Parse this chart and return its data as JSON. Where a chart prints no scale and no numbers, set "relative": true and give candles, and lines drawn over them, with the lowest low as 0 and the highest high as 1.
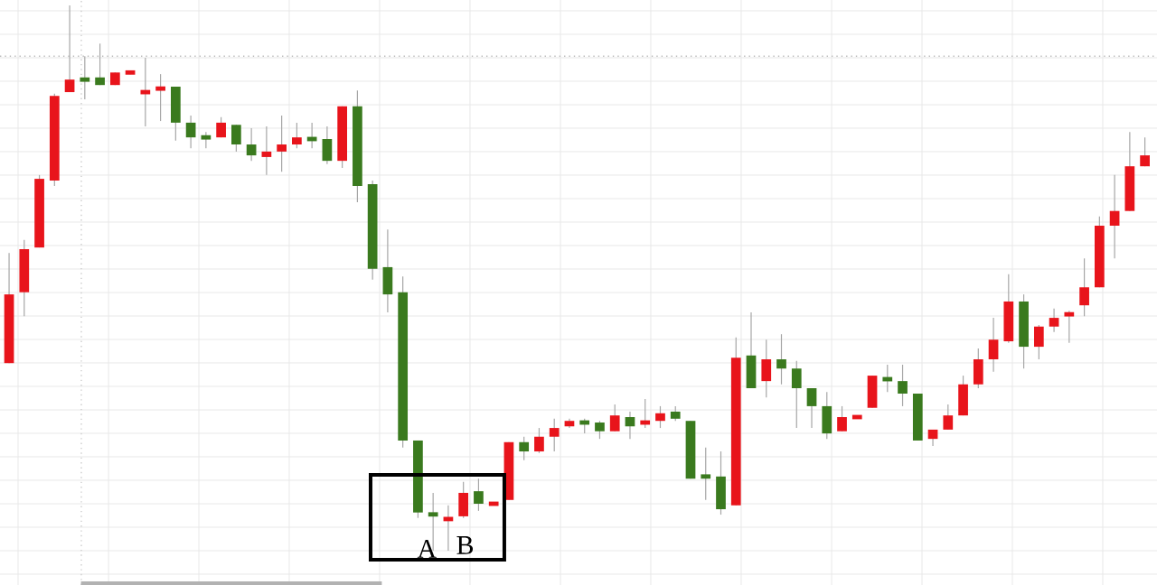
{
  "chart_data": {
    "type": "candlestick",
    "relative": true,
    "grid": true,
    "categories": [
      null,
      null,
      null,
      null,
      null,
      null,
      null,
      null,
      null,
      null,
      null,
      null,
      null,
      null,
      null,
      null,
      null,
      null,
      null,
      null,
      null,
      null,
      null,
      null,
      null,
      null,
      null,
      null,
      null,
      null,
      null,
      null,
      null,
      null,
      null,
      null,
      null,
      null,
      null,
      null,
      null,
      null,
      null,
      null,
      null,
      null,
      null,
      null,
      null,
      null,
      null,
      null,
      null,
      null,
      null,
      null,
      null,
      null,
      null,
      null,
      null,
      null,
      null,
      null,
      null,
      null,
      null,
      null,
      null,
      null,
      null,
      null,
      null,
      null,
      null,
      null
    ],
    "ohlc": [
      [
        0.344,
        0.546,
        0.344,
        0.47
      ],
      [
        0.474,
        0.57,
        0.43,
        0.553
      ],
      [
        0.556,
        0.689,
        0.556,
        0.682
      ],
      [
        0.679,
        0.838,
        0.669,
        0.834
      ],
      [
        0.841,
        1.0,
        0.841,
        0.864
      ],
      [
        0.864,
        0.907,
        0.828,
        0.864
      ],
      [
        0.868,
        0.93,
        0.854,
        0.854
      ],
      [
        0.854,
        0.877,
        0.854,
        0.877
      ],
      [
        0.877,
        0.881,
        0.874,
        0.877
      ],
      [
        0.838,
        0.904,
        0.778,
        0.844
      ],
      [
        0.844,
        0.874,
        0.788,
        0.851
      ],
      [
        0.851,
        0.851,
        0.752,
        0.785
      ],
      [
        0.785,
        0.798,
        0.738,
        0.758
      ],
      [
        0.758,
        0.768,
        0.738,
        0.758
      ],
      [
        0.758,
        0.795,
        0.758,
        0.785
      ],
      [
        0.781,
        0.781,
        0.732,
        0.745
      ],
      [
        0.745,
        0.775,
        0.715,
        0.725
      ],
      [
        0.722,
        0.778,
        0.689,
        0.732
      ],
      [
        0.732,
        0.798,
        0.695,
        0.745
      ],
      [
        0.745,
        0.785,
        0.738,
        0.758
      ],
      [
        0.758,
        0.785,
        0.738,
        0.752
      ],
      [
        0.755,
        0.778,
        0.709,
        0.715
      ],
      [
        0.715,
        0.815,
        0.702,
        0.815
      ],
      [
        0.815,
        0.844,
        0.639,
        0.669
      ],
      [
        0.672,
        0.679,
        0.497,
        0.517
      ],
      [
        0.52,
        0.589,
        0.437,
        0.47
      ],
      [
        0.474,
        0.503,
        0.189,
        0.202
      ],
      [
        0.202,
        0.202,
        0.06,
        0.07
      ],
      [
        0.07,
        0.106,
        0.0,
        0.063
      ],
      [
        0.056,
        0.083,
        0.0,
        0.06
      ],
      [
        0.063,
        0.126,
        0.06,
        0.106
      ],
      [
        0.109,
        0.132,
        0.073,
        0.086
      ],
      [
        0.086,
        0.089,
        0.083,
        0.086
      ],
      [
        0.093,
        0.199,
        0.093,
        0.199
      ],
      [
        0.199,
        0.209,
        0.166,
        0.182
      ],
      [
        0.182,
        0.225,
        0.179,
        0.209
      ],
      [
        0.209,
        0.242,
        0.182,
        0.225
      ],
      [
        0.228,
        0.242,
        0.225,
        0.238
      ],
      [
        0.238,
        0.242,
        0.215,
        0.232
      ],
      [
        0.235,
        0.238,
        0.205,
        0.219
      ],
      [
        0.219,
        0.268,
        0.219,
        0.248
      ],
      [
        0.245,
        0.255,
        0.205,
        0.228
      ],
      [
        0.232,
        0.278,
        0.225,
        0.238
      ],
      [
        0.238,
        0.265,
        0.225,
        0.252
      ],
      [
        0.255,
        0.265,
        0.238,
        0.242
      ],
      [
        0.238,
        0.238,
        0.132,
        0.132
      ],
      [
        0.136,
        0.189,
        0.093,
        0.136
      ],
      [
        0.136,
        0.182,
        0.066,
        0.076
      ],
      [
        0.083,
        0.391,
        0.083,
        0.354
      ],
      [
        0.358,
        0.437,
        0.298,
        0.298
      ],
      [
        0.311,
        0.387,
        0.281,
        0.351
      ],
      [
        0.351,
        0.397,
        0.305,
        0.334
      ],
      [
        0.334,
        0.348,
        0.225,
        0.298
      ],
      [
        0.298,
        0.298,
        0.225,
        0.265
      ],
      [
        0.265,
        0.291,
        0.205,
        0.215
      ],
      [
        0.219,
        0.265,
        0.219,
        0.245
      ],
      [
        0.245,
        0.248,
        0.242,
        0.245
      ],
      [
        0.262,
        0.321,
        0.262,
        0.321
      ],
      [
        0.318,
        0.341,
        0.291,
        0.311
      ],
      [
        0.311,
        0.341,
        0.265,
        0.288
      ],
      [
        0.288,
        0.288,
        0.202,
        0.202
      ],
      [
        0.205,
        0.222,
        0.192,
        0.222
      ],
      [
        0.222,
        0.268,
        0.222,
        0.248
      ],
      [
        0.248,
        0.321,
        0.248,
        0.305
      ],
      [
        0.305,
        0.371,
        0.298,
        0.351
      ],
      [
        0.351,
        0.427,
        0.328,
        0.387
      ],
      [
        0.384,
        0.507,
        0.381,
        0.457
      ],
      [
        0.457,
        0.47,
        0.334,
        0.374
      ],
      [
        0.374,
        0.414,
        0.351,
        0.411
      ],
      [
        0.411,
        0.444,
        0.401,
        0.427
      ],
      [
        0.43,
        0.44,
        0.381,
        0.437
      ],
      [
        0.45,
        0.536,
        0.43,
        0.483
      ],
      [
        0.483,
        0.613,
        0.483,
        0.596
      ],
      [
        0.596,
        0.689,
        0.536,
        0.623
      ],
      [
        0.623,
        0.768,
        0.623,
        0.705
      ],
      [
        0.705,
        0.758,
        0.705,
        0.725
      ]
    ],
    "colors": [
      "#e8141b",
      "#e8141b",
      "#e8141b",
      "#e8141b",
      "#e8141b",
      "#3a7a1e",
      "#3a7a1e",
      "#e8141b",
      "#e8141b",
      "#e8141b",
      "#e8141b",
      "#3a7a1e",
      "#3a7a1e",
      "#3a7a1e",
      "#e8141b",
      "#3a7a1e",
      "#3a7a1e",
      "#e8141b",
      "#e8141b",
      "#e8141b",
      "#3a7a1e",
      "#3a7a1e",
      "#e8141b",
      "#3a7a1e",
      "#3a7a1e",
      "#3a7a1e",
      "#3a7a1e",
      "#3a7a1e",
      "#3a7a1e",
      "#e8141b",
      "#e8141b",
      "#3a7a1e",
      "#e8141b",
      "#e8141b",
      "#3a7a1e",
      "#e8141b",
      "#e8141b",
      "#e8141b",
      "#3a7a1e",
      "#3a7a1e",
      "#e8141b",
      "#3a7a1e",
      "#e8141b",
      "#e8141b",
      "#3a7a1e",
      "#3a7a1e",
      "#3a7a1e",
      "#3a7a1e",
      "#e8141b",
      "#3a7a1e",
      "#e8141b",
      "#3a7a1e",
      "#3a7a1e",
      "#3a7a1e",
      "#3a7a1e",
      "#e8141b",
      "#e8141b",
      "#e8141b",
      "#3a7a1e",
      "#3a7a1e",
      "#3a7a1e",
      "#e8141b",
      "#e8141b",
      "#e8141b",
      "#e8141b",
      "#e8141b",
      "#e8141b",
      "#3a7a1e",
      "#e8141b",
      "#e8141b",
      "#e8141b",
      "#e8141b",
      "#e8141b",
      "#e8141b",
      "#e8141b",
      "#e8141b"
    ],
    "annotations": [
      "A",
      "B"
    ],
    "ref_lines": [
      {
        "axis": "y",
        "value": 0.907,
        "color": "#bbbbbb",
        "line_style": "dotted"
      }
    ]
  }
}
